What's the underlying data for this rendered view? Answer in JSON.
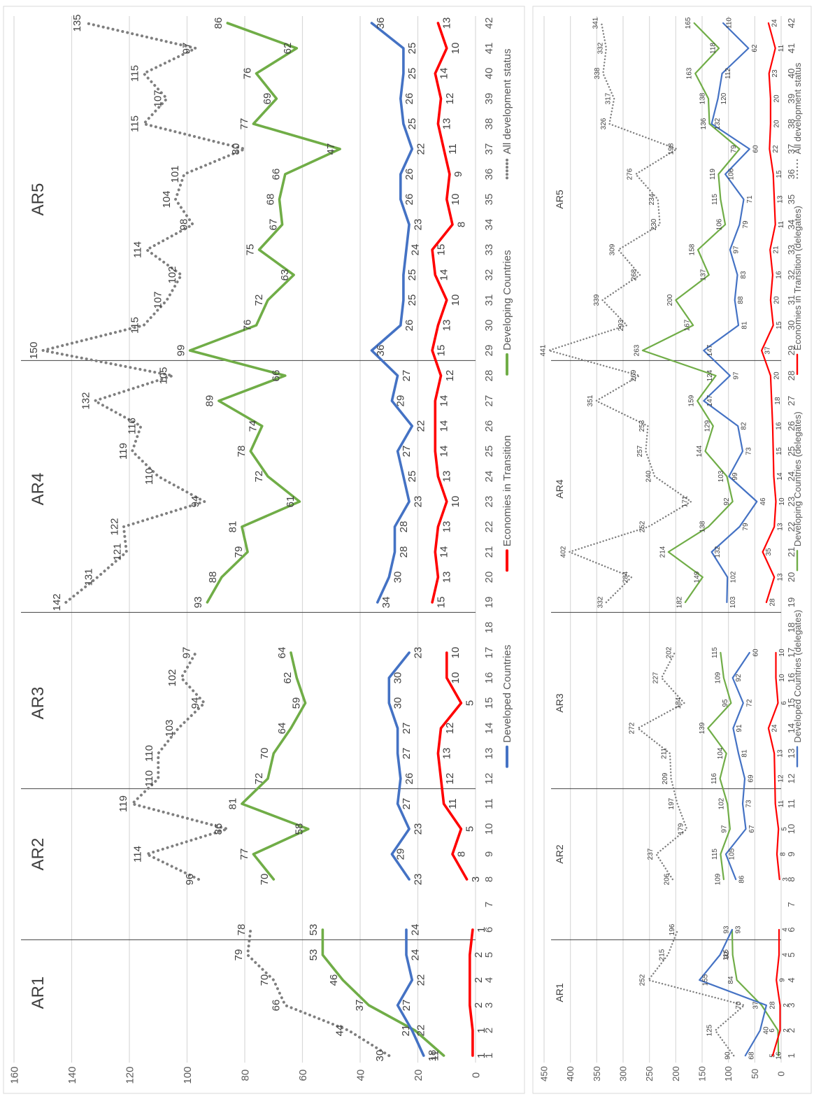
{
  "chart_data": [
    {
      "type": "line",
      "title": "",
      "xlabel": "",
      "ylabel": "",
      "x": [
        1,
        2,
        3,
        4,
        5,
        6,
        7,
        8,
        9,
        10,
        11,
        12,
        13,
        14,
        15,
        16,
        17,
        18,
        19,
        20,
        21,
        22,
        23,
        24,
        25,
        26,
        27,
        28,
        29,
        30,
        31,
        32,
        33,
        34,
        35,
        36,
        37,
        38,
        39,
        40,
        41,
        42
      ],
      "ylim": [
        0,
        160
      ],
      "yticks": [
        0,
        20,
        40,
        60,
        80,
        100,
        120,
        140,
        160
      ],
      "grid": true,
      "legend_position": "bottom",
      "period_labels": [
        "AR1",
        "AR2",
        "AR3",
        "AR4",
        "AR5"
      ],
      "series": [
        {
          "name": "All development status",
          "color": "#7f7f7f",
          "style": "dotted",
          "label_values": true,
          "values": [
            30,
            44,
            66,
            70,
            79,
            78,
            null,
            96,
            114,
            86,
            119,
            110,
            110,
            103,
            94,
            102,
            97,
            null,
            142,
            131,
            121,
            122,
            94,
            110,
            119,
            116,
            132,
            105,
            150,
            115,
            107,
            102,
            114,
            98,
            104,
            101,
            80,
            115,
            107,
            115,
            97,
            135
          ]
        },
        {
          "name": "Developing Countries",
          "color": "#70ad47",
          "style": "solid",
          "label_values": true,
          "values": [
            11,
            21,
            37,
            46,
            53,
            53,
            null,
            70,
            77,
            58,
            81,
            72,
            70,
            64,
            59,
            62,
            64,
            null,
            93,
            88,
            79,
            81,
            61,
            72,
            78,
            74,
            89,
            66,
            99,
            76,
            72,
            63,
            75,
            67,
            68,
            66,
            47,
            77,
            69,
            76,
            62,
            86
          ]
        },
        {
          "name": "Developed Countries",
          "color": "#4472c4",
          "style": "solid",
          "label_values": true,
          "values": [
            18,
            22,
            27,
            22,
            24,
            24,
            null,
            23,
            29,
            23,
            27,
            26,
            27,
            27,
            30,
            30,
            23,
            null,
            34,
            30,
            28,
            28,
            23,
            25,
            27,
            22,
            29,
            27,
            36,
            26,
            25,
            25,
            24,
            23,
            26,
            26,
            22,
            25,
            26,
            25,
            25,
            36
          ]
        },
        {
          "name": "Economies in Transition",
          "color": "#ff0000",
          "style": "solid",
          "label_values": true,
          "values": [
            1,
            1,
            2,
            2,
            2,
            1,
            null,
            3,
            8,
            5,
            11,
            12,
            13,
            12,
            5,
            10,
            10,
            null,
            15,
            13,
            14,
            13,
            10,
            13,
            14,
            14,
            14,
            12,
            15,
            13,
            10,
            14,
            15,
            8,
            10,
            9,
            11,
            13,
            12,
            14,
            10,
            13
          ]
        }
      ]
    },
    {
      "type": "line",
      "title": "",
      "xlabel": "",
      "ylabel": "",
      "x": [
        1,
        2,
        3,
        4,
        5,
        6,
        7,
        8,
        9,
        10,
        11,
        12,
        13,
        14,
        15,
        16,
        17,
        18,
        19,
        20,
        21,
        22,
        23,
        24,
        25,
        26,
        27,
        28,
        29,
        30,
        31,
        32,
        33,
        34,
        35,
        36,
        37,
        38,
        39,
        40,
        41,
        42
      ],
      "ylim": [
        0,
        450
      ],
      "yticks": [
        0,
        50,
        100,
        150,
        200,
        250,
        300,
        350,
        400,
        450
      ],
      "grid": true,
      "legend_position": "bottom",
      "period_labels": [
        "AR1",
        "AR2",
        "AR3",
        "AR4",
        "AR5"
      ],
      "series": [
        {
          "name": "All development status",
          "color": "#7f7f7f",
          "style": "dotted",
          "label_values": true,
          "values": [
            90,
            125,
            70,
            252,
            215,
            196,
            null,
            206,
            237,
            179,
            197,
            209,
            211,
            272,
            184,
            227,
            202,
            null,
            332,
            284,
            402,
            252,
            171,
            240,
            257,
            253,
            351,
            269,
            441,
            293,
            339,
            268,
            309,
            230,
            234,
            276,
            198,
            326,
            317,
            338,
            332,
            341
          ]
        },
        {
          "name": "Developing Countries",
          "color": "#70ad47",
          "style": "solid",
          "label_values": true,
          "values": [
            5,
            6,
            37,
            84,
            92,
            93,
            null,
            109,
            115,
            97,
            102,
            116,
            104,
            139,
            95,
            109,
            115,
            null,
            182,
            149,
            214,
            138,
            92,
            103,
            144,
            129,
            159,
            124,
            263,
            167,
            200,
            137,
            158,
            106,
            115,
            119,
            79,
            136,
            138,
            163,
            118,
            165
          ]
        },
        {
          "name": "Developed Countries",
          "color": "#4472c4",
          "style": "solid",
          "label_values": true,
          "values": [
            68,
            40,
            28,
            155,
            116,
            93,
            null,
            86,
            105,
            67,
            73,
            69,
            81,
            91,
            72,
            92,
            60,
            null,
            103,
            102,
            132,
            79,
            46,
            99,
            73,
            82,
            147,
            97,
            147,
            81,
            88,
            83,
            97,
            79,
            71,
            106,
            60,
            132,
            120,
            112,
            62,
            110
          ]
        },
        {
          "name": "Economies in Transition",
          "color": "#ff0000",
          "style": "solid",
          "label_values": true,
          "values": [
            16,
            2,
            2,
            9,
            4,
            4,
            null,
            3,
            8,
            5,
            11,
            12,
            13,
            24,
            6,
            10,
            10,
            null,
            28,
            13,
            35,
            13,
            10,
            14,
            15,
            16,
            18,
            20,
            37,
            15,
            20,
            16,
            21,
            11,
            13,
            15,
            22,
            20,
            20,
            23,
            11,
            24
          ]
        }
      ]
    }
  ],
  "legend_top": [
    "Developed Countries",
    "Economies in Transition",
    "Developing Countries",
    "All development status"
  ],
  "legend_bottom": [
    "Developed Countries (delegates)",
    "Developing Countries (delegates)",
    "Economies in Transition (delegates)",
    "All development status"
  ]
}
